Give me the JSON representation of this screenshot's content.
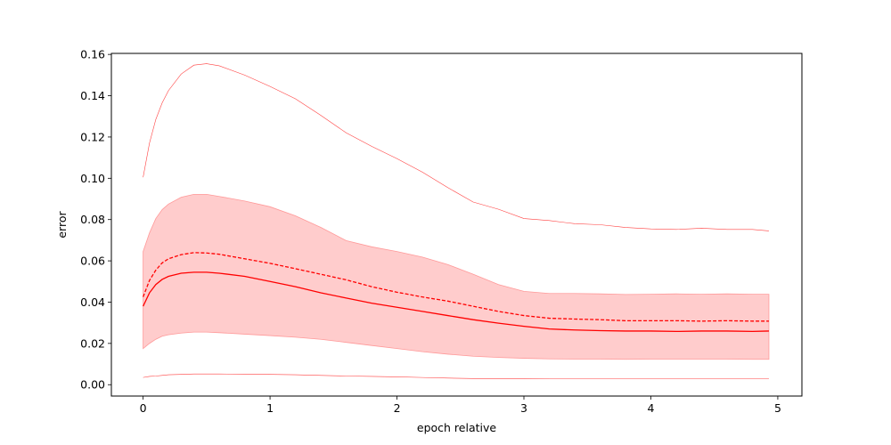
{
  "chart_data": {
    "type": "line",
    "title": "",
    "xlabel": "epoch relative",
    "ylabel": "error",
    "xlim": [
      -0.25,
      5.19
    ],
    "ylim": [
      -0.0055,
      0.1605
    ],
    "x_ticks": [
      0,
      1,
      2,
      3,
      4,
      5
    ],
    "y_ticks": [
      0.0,
      0.02,
      0.04,
      0.06,
      0.08,
      0.1,
      0.12,
      0.14,
      0.16
    ],
    "grid": false,
    "legend": "none",
    "color": "#ff0000",
    "band_color": "#ffcccc",
    "x": [
      0,
      0.05,
      0.1,
      0.15,
      0.2,
      0.3,
      0.4,
      0.5,
      0.6,
      0.8,
      1.0,
      1.2,
      1.4,
      1.6,
      1.8,
      2.0,
      2.2,
      2.4,
      2.6,
      2.8,
      3.0,
      3.2,
      3.4,
      3.6,
      3.8,
      4.0,
      4.2,
      4.4,
      4.6,
      4.8,
      4.93
    ],
    "series": [
      {
        "role": "median",
        "style": "solid",
        "values": [
          0.038,
          0.0445,
          0.0485,
          0.051,
          0.0525,
          0.054,
          0.0545,
          0.0545,
          0.054,
          0.0525,
          0.05,
          0.0475,
          0.0445,
          0.042,
          0.0395,
          0.0375,
          0.0355,
          0.0335,
          0.0315,
          0.0298,
          0.0283,
          0.027,
          0.0265,
          0.0262,
          0.026,
          0.026,
          0.0258,
          0.026,
          0.026,
          0.0258,
          0.026
        ]
      },
      {
        "role": "mean",
        "style": "dashed",
        "values": [
          0.0425,
          0.0505,
          0.0555,
          0.059,
          0.061,
          0.063,
          0.064,
          0.0638,
          0.0632,
          0.061,
          0.0588,
          0.0562,
          0.0535,
          0.0508,
          0.0475,
          0.0448,
          0.0425,
          0.0405,
          0.038,
          0.0355,
          0.0335,
          0.0322,
          0.0318,
          0.0315,
          0.031,
          0.031,
          0.031,
          0.0308,
          0.031,
          0.0308,
          0.0308
        ]
      },
      {
        "role": "upper-quantile",
        "style": "thin",
        "values": [
          0.1005,
          0.117,
          0.1285,
          0.1365,
          0.1425,
          0.1505,
          0.1548,
          0.1555,
          0.1545,
          0.15,
          0.1445,
          0.1385,
          0.1305,
          0.122,
          0.1155,
          0.1095,
          0.103,
          0.0955,
          0.0885,
          0.085,
          0.0805,
          0.0795,
          0.078,
          0.0775,
          0.0762,
          0.0755,
          0.0752,
          0.0758,
          0.0752,
          0.0752,
          0.0745
        ]
      },
      {
        "role": "lower-quantile",
        "style": "thin",
        "values": [
          0.0035,
          0.004,
          0.0042,
          0.0045,
          0.0048,
          0.005,
          0.0052,
          0.0052,
          0.0052,
          0.0051,
          0.005,
          0.0048,
          0.0045,
          0.0042,
          0.004,
          0.0038,
          0.0035,
          0.0032,
          0.003,
          0.003,
          0.003,
          0.0028,
          0.0028,
          0.0028,
          0.0028,
          0.0028,
          0.0028,
          0.0028,
          0.0028,
          0.0028,
          0.0028
        ]
      }
    ],
    "band": {
      "lower": [
        0.0175,
        0.02,
        0.022,
        0.0235,
        0.0242,
        0.025,
        0.0255,
        0.0255,
        0.0252,
        0.0245,
        0.0238,
        0.023,
        0.022,
        0.0205,
        0.019,
        0.0175,
        0.016,
        0.0148,
        0.0138,
        0.0132,
        0.0128,
        0.0125,
        0.0124,
        0.0124,
        0.0123,
        0.0124,
        0.0124,
        0.0124,
        0.0124,
        0.0123,
        0.0123
      ],
      "upper": [
        0.0645,
        0.0735,
        0.0805,
        0.0848,
        0.0875,
        0.0908,
        0.0922,
        0.0922,
        0.0912,
        0.089,
        0.0862,
        0.0818,
        0.0762,
        0.0698,
        0.0668,
        0.0645,
        0.0618,
        0.0582,
        0.0535,
        0.0485,
        0.0452,
        0.0442,
        0.0442,
        0.044,
        0.0437,
        0.0438,
        0.044,
        0.0438,
        0.044,
        0.0438,
        0.0438
      ]
    }
  }
}
